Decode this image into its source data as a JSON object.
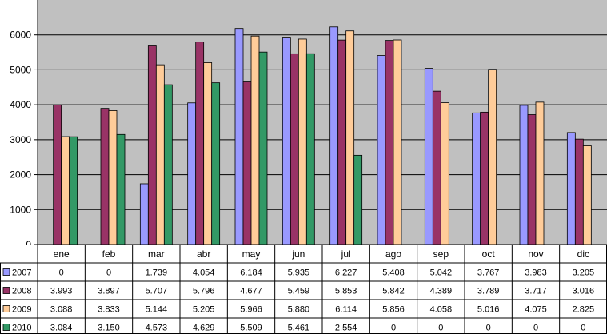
{
  "chart_data": {
    "type": "bar",
    "categories": [
      "ene",
      "feb",
      "mar",
      "abr",
      "may",
      "jun",
      "jul",
      "ago",
      "sep",
      "oct",
      "nov",
      "dic"
    ],
    "ylim": [
      0,
      7000
    ],
    "yticks": [
      0,
      1000,
      2000,
      3000,
      4000,
      5000,
      6000
    ],
    "grid": true,
    "plot_background": "#c0c0c0",
    "legend_placement": "data-table-left",
    "series": [
      {
        "name": "2007",
        "color": "#9999ff",
        "values": [
          0,
          0,
          1739,
          4054,
          6184,
          5935,
          6227,
          5408,
          5042,
          3767,
          3983,
          3205
        ],
        "labels": [
          "0",
          "0",
          "1.739",
          "4.054",
          "6.184",
          "5.935",
          "6.227",
          "5.408",
          "5.042",
          "3.767",
          "3.983",
          "3.205"
        ]
      },
      {
        "name": "2008",
        "color": "#993366",
        "values": [
          3993,
          3897,
          5707,
          5796,
          4677,
          5459,
          5853,
          5842,
          4389,
          3789,
          3717,
          3016
        ],
        "labels": [
          "3.993",
          "3.897",
          "5.707",
          "5.796",
          "4.677",
          "5.459",
          "5.853",
          "5.842",
          "4.389",
          "3.789",
          "3.717",
          "3.016"
        ]
      },
      {
        "name": "2009",
        "color": "#ffcc99",
        "values": [
          3088,
          3833,
          5144,
          5205,
          5966,
          5880,
          6114,
          5856,
          4058,
          5016,
          4075,
          2825
        ],
        "labels": [
          "3.088",
          "3.833",
          "5.144",
          "5.205",
          "5.966",
          "5.880",
          "6.114",
          "5.856",
          "4.058",
          "5.016",
          "4.075",
          "2.825"
        ]
      },
      {
        "name": "2010",
        "color": "#339966",
        "values": [
          3084,
          3150,
          4573,
          4629,
          5509,
          5461,
          2554,
          0,
          0,
          0,
          0,
          0
        ],
        "labels": [
          "3.084",
          "3.150",
          "4.573",
          "4.629",
          "5.509",
          "5.461",
          "2.554",
          "0",
          "0",
          "0",
          "0",
          "0"
        ]
      }
    ]
  }
}
